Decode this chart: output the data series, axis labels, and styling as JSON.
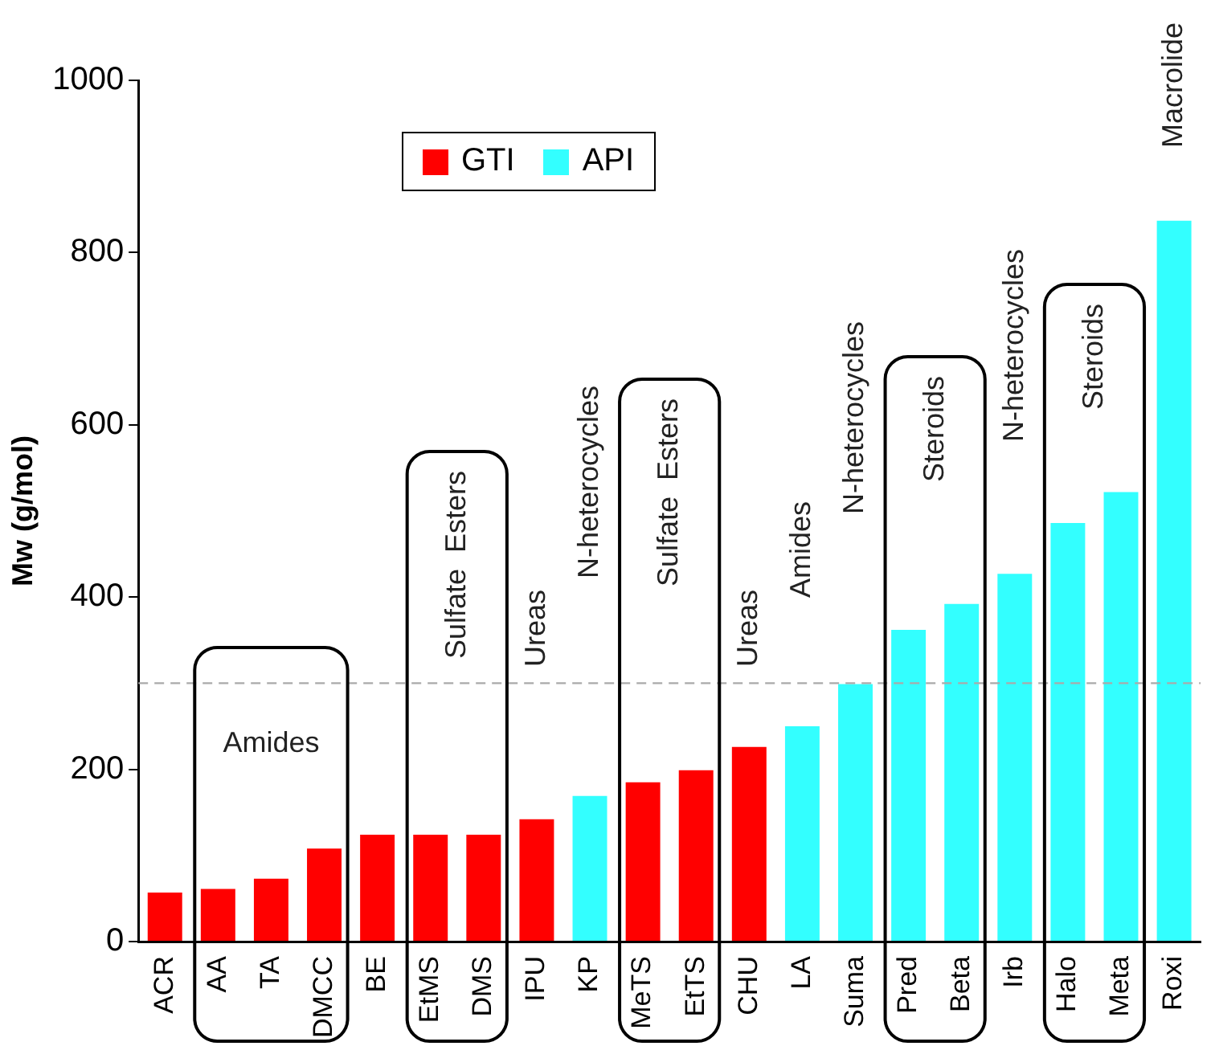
{
  "chart_data": {
    "type": "bar",
    "ylabel": "Mw (g/mol)",
    "categories": [
      "ACR",
      "AA",
      "TA",
      "DMCC",
      "BE",
      "EtMS",
      "DMS",
      "IPU",
      "KP",
      "MeTS",
      "EtTS",
      "CHU",
      "LA",
      "Suma",
      "Pred",
      "Beta",
      "Irb",
      "Halo",
      "Meta",
      "Roxi"
    ],
    "series": [
      {
        "name": "GTI",
        "color": "#ff0000",
        "values": [
          57,
          61,
          73,
          108,
          124,
          124,
          124,
          142,
          null,
          185,
          199,
          226,
          null,
          null,
          null,
          null,
          null,
          null,
          null,
          null
        ]
      },
      {
        "name": "API",
        "color": "#33ffff",
        "values": [
          null,
          null,
          null,
          null,
          null,
          null,
          null,
          null,
          169,
          null,
          null,
          null,
          250,
          299,
          362,
          392,
          427,
          486,
          522,
          837
        ]
      }
    ],
    "ylim": [
      0,
      1000
    ],
    "yticks": [
      0,
      200,
      400,
      600,
      800,
      1000
    ],
    "grid": false,
    "legend": "top left",
    "ref_lines": [
      {
        "axis": "y",
        "value": 300,
        "color": "#aaaaaa",
        "line_style": "dashed"
      }
    ],
    "annotations": [
      "Amides",
      "Sulfate  Esters",
      "Ureas",
      "N-heterocycles",
      "Sulfate  Esters",
      "Ureas",
      "Amides",
      "N-heterocycles",
      "Steroids",
      "N-heterocycles",
      "Steroids",
      "Macrolide"
    ]
  }
}
